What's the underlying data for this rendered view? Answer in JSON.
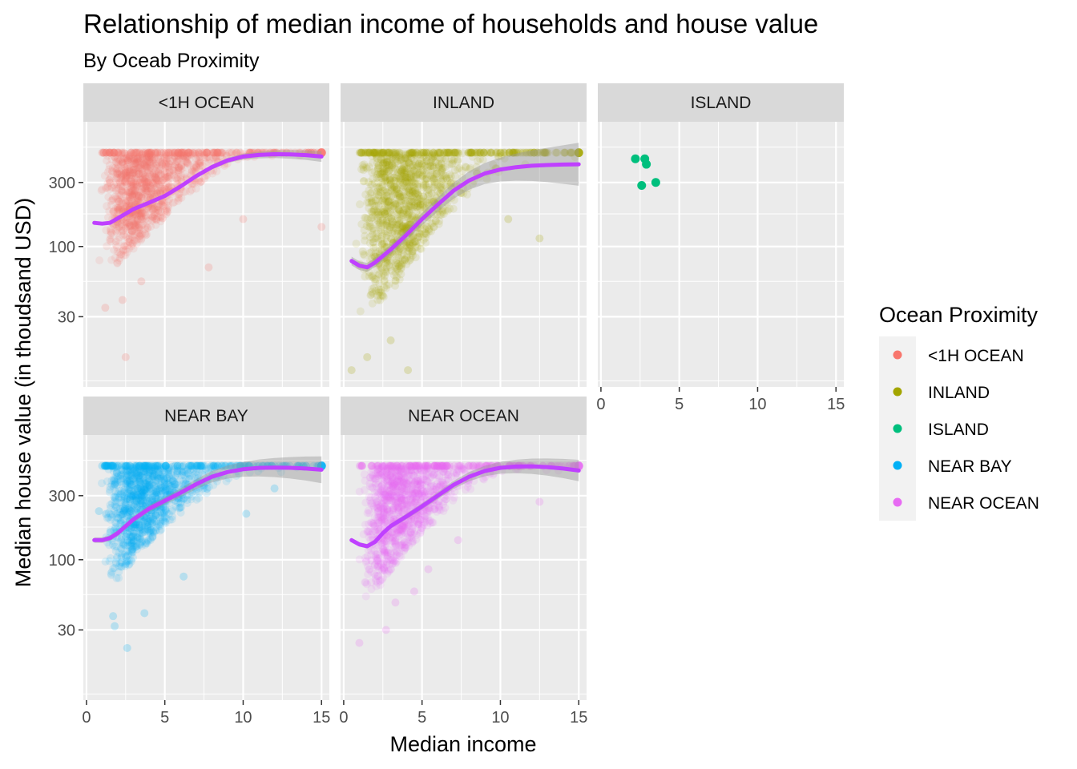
{
  "chart_data": {
    "type": "scatter",
    "title": "Relationship of median income of households and house value",
    "subtitle": "By Oceab Proximity",
    "xlabel": "Median income",
    "ylabel": "Median house value (in thoudsand USD)",
    "x_ticks": [
      0,
      5,
      10,
      15
    ],
    "y_ticks": [
      30,
      100,
      300
    ],
    "y_scale": "log10",
    "xlim": [
      -0.2,
      15.5
    ],
    "ylim": [
      9,
      850
    ],
    "grid": true,
    "legend": {
      "title": "Ocean Proximity",
      "position": "right",
      "entries": [
        {
          "label": "<1H OCEAN",
          "color": "#F8766D"
        },
        {
          "label": "INLAND",
          "color": "#A3A500"
        },
        {
          "label": "ISLAND",
          "color": "#00BF7D"
        },
        {
          "label": "NEAR BAY",
          "color": "#00B0F6"
        },
        {
          "label": "NEAR OCEAN",
          "color": "#E76BF3"
        }
      ]
    },
    "smooth_color": "#BF40FF",
    "panels": [
      {
        "name": "<1H OCEAN",
        "color": "#F8766D",
        "cloud": {
          "x_min": 0.5,
          "x_max": 15,
          "y_low": [
            [
              0.5,
              78
            ],
            [
              1,
              75
            ],
            [
              2,
              70
            ],
            [
              3,
              95
            ],
            [
              4,
              125
            ],
            [
              5,
              160
            ],
            [
              6,
              205
            ],
            [
              7,
              265
            ],
            [
              8,
              340
            ],
            [
              9,
              410
            ],
            [
              10,
              460
            ],
            [
              15,
              480
            ]
          ],
          "y_high": 500
        },
        "outliers": [
          [
            1.2,
            35
          ],
          [
            2.5,
            15
          ],
          [
            7.8,
            70
          ],
          [
            2.3,
            40
          ],
          [
            3.5,
            55
          ],
          [
            10,
            160
          ],
          [
            15,
            140
          ],
          [
            1.5,
            300
          ]
        ],
        "smooth": [
          [
            0.5,
            150
          ],
          [
            1,
            148
          ],
          [
            1.5,
            150
          ],
          [
            2,
            162
          ],
          [
            3,
            190
          ],
          [
            4,
            212
          ],
          [
            5,
            238
          ],
          [
            6,
            280
          ],
          [
            7,
            335
          ],
          [
            8,
            390
          ],
          [
            9,
            438
          ],
          [
            10,
            468
          ],
          [
            11,
            481
          ],
          [
            12,
            487
          ],
          [
            13,
            486
          ],
          [
            14,
            480
          ],
          [
            15,
            468
          ]
        ],
        "smooth_band": 0.02
      },
      {
        "name": "INLAND",
        "color": "#A3A500",
        "cloud": {
          "x_min": 0.5,
          "x_max": 15,
          "y_low": [
            [
              0.5,
              25
            ],
            [
              1,
              27
            ],
            [
              2,
              32
            ],
            [
              3,
              45
            ],
            [
              4,
              65
            ],
            [
              5,
              95
            ],
            [
              6,
              140
            ],
            [
              7,
              190
            ],
            [
              8,
              240
            ],
            [
              9,
              290
            ],
            [
              10,
              320
            ],
            [
              12,
              360
            ],
            [
              15,
              380
            ]
          ],
          "y_high": 500
        },
        "outliers": [
          [
            0.5,
            12
          ],
          [
            4.1,
            12
          ],
          [
            3,
            20
          ],
          [
            1.5,
            15
          ],
          [
            12.5,
            115
          ],
          [
            10.5,
            160
          ],
          [
            7.5,
            250
          ],
          [
            8.5,
            350
          ]
        ],
        "smooth": [
          [
            0.5,
            78
          ],
          [
            1,
            72
          ],
          [
            1.5,
            70
          ],
          [
            2,
            76
          ],
          [
            3,
            95
          ],
          [
            4,
            122
          ],
          [
            5,
            160
          ],
          [
            6,
            205
          ],
          [
            7,
            260
          ],
          [
            8,
            310
          ],
          [
            9,
            350
          ],
          [
            10,
            375
          ],
          [
            11,
            390
          ],
          [
            12,
            400
          ],
          [
            13,
            405
          ],
          [
            14,
            408
          ],
          [
            15,
            410
          ]
        ],
        "smooth_band": 0.08
      },
      {
        "name": "ISLAND",
        "color": "#00BF7D",
        "points": [
          [
            2.2,
            450
          ],
          [
            2.8,
            450
          ],
          [
            2.9,
            410
          ],
          [
            2.6,
            285
          ],
          [
            3.5,
            300
          ]
        ]
      },
      {
        "name": "NEAR BAY",
        "color": "#00B0F6",
        "cloud": {
          "x_min": 0.5,
          "x_max": 15,
          "y_low": [
            [
              0.5,
              70
            ],
            [
              1,
              68
            ],
            [
              2,
              70
            ],
            [
              3,
              100
            ],
            [
              4,
              135
            ],
            [
              5,
              175
            ],
            [
              6,
              220
            ],
            [
              7,
              270
            ],
            [
              8,
              320
            ],
            [
              9,
              380
            ],
            [
              10,
              420
            ],
            [
              15,
              460
            ]
          ],
          "y_high": 500
        },
        "outliers": [
          [
            1.7,
            38
          ],
          [
            1.8,
            32
          ],
          [
            2.6,
            22
          ],
          [
            3.7,
            40
          ],
          [
            6.2,
            75
          ],
          [
            10.2,
            220
          ],
          [
            12,
            340
          ],
          [
            0.8,
            230
          ]
        ],
        "smooth": [
          [
            0.5,
            140
          ],
          [
            1,
            140
          ],
          [
            1.5,
            145
          ],
          [
            2,
            158
          ],
          [
            3,
            200
          ],
          [
            4,
            240
          ],
          [
            5,
            275
          ],
          [
            6,
            315
          ],
          [
            7,
            365
          ],
          [
            8,
            415
          ],
          [
            9,
            450
          ],
          [
            10,
            472
          ],
          [
            11,
            483
          ],
          [
            12,
            486
          ],
          [
            13,
            484
          ],
          [
            14,
            478
          ],
          [
            15,
            468
          ]
        ],
        "smooth_band": 0.05
      },
      {
        "name": "NEAR OCEAN",
        "color": "#E76BF3",
        "cloud": {
          "x_min": 0.5,
          "x_max": 15,
          "y_low": [
            [
              0.5,
              55
            ],
            [
              1,
              50
            ],
            [
              2,
              55
            ],
            [
              3,
              80
            ],
            [
              4,
              110
            ],
            [
              5,
              150
            ],
            [
              6,
              200
            ],
            [
              7,
              260
            ],
            [
              8,
              320
            ],
            [
              9,
              380
            ],
            [
              10,
              430
            ],
            [
              15,
              470
            ]
          ],
          "y_high": 500
        },
        "outliers": [
          [
            1,
            24
          ],
          [
            2.7,
            30
          ],
          [
            3.3,
            48
          ],
          [
            4.5,
            58
          ],
          [
            7.3,
            140
          ],
          [
            12.5,
            270
          ],
          [
            5.4,
            85
          ]
        ],
        "smooth": [
          [
            0.5,
            140
          ],
          [
            1,
            130
          ],
          [
            1.5,
            126
          ],
          [
            2,
            136
          ],
          [
            2.5,
            158
          ],
          [
            3,
            178
          ],
          [
            4,
            210
          ],
          [
            5,
            250
          ],
          [
            6,
            300
          ],
          [
            7,
            360
          ],
          [
            8,
            415
          ],
          [
            9,
            458
          ],
          [
            10,
            484
          ],
          [
            11,
            495
          ],
          [
            12,
            497
          ],
          [
            13,
            490
          ],
          [
            14,
            478
          ],
          [
            15,
            462
          ]
        ],
        "smooth_band": 0.04
      }
    ]
  }
}
